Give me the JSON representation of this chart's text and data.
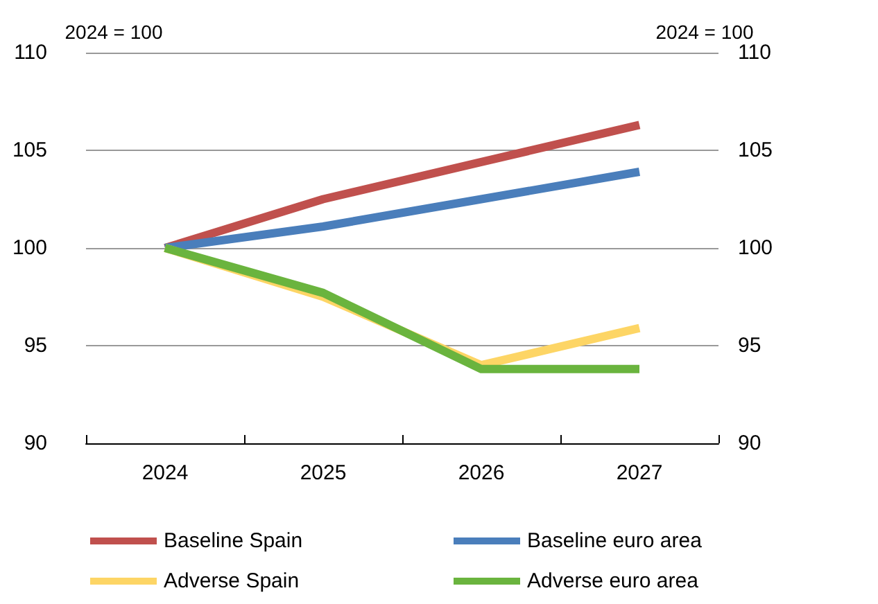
{
  "chart_data": {
    "type": "line",
    "ylabel": "2024 = 100",
    "y2label": "2024 = 100",
    "categories": [
      "2024",
      "2025",
      "2026",
      "2027"
    ],
    "series": [
      {
        "name": "Baseline Spain",
        "color": "#c0504d",
        "values": [
          100,
          102.5,
          104.4,
          106.3
        ]
      },
      {
        "name": "Baseline euro area",
        "color": "#4a7ebb",
        "values": [
          100,
          101.1,
          102.5,
          103.9
        ]
      },
      {
        "name": "Adverse Spain",
        "color": "#fdd565",
        "values": [
          100,
          97.5,
          94.0,
          95.9
        ]
      },
      {
        "name": "Adverse euro area",
        "color": "#6ab43e",
        "values": [
          100,
          97.7,
          93.8,
          93.8
        ]
      }
    ],
    "ylim": [
      90,
      110
    ],
    "yticks": [
      90,
      95,
      100,
      105,
      110
    ],
    "y2lim": [
      90,
      110
    ],
    "y2ticks": [
      90,
      95,
      100,
      105,
      110
    ],
    "grid": "y",
    "legend": "bottom",
    "marker": "none",
    "line_style": "solid"
  }
}
